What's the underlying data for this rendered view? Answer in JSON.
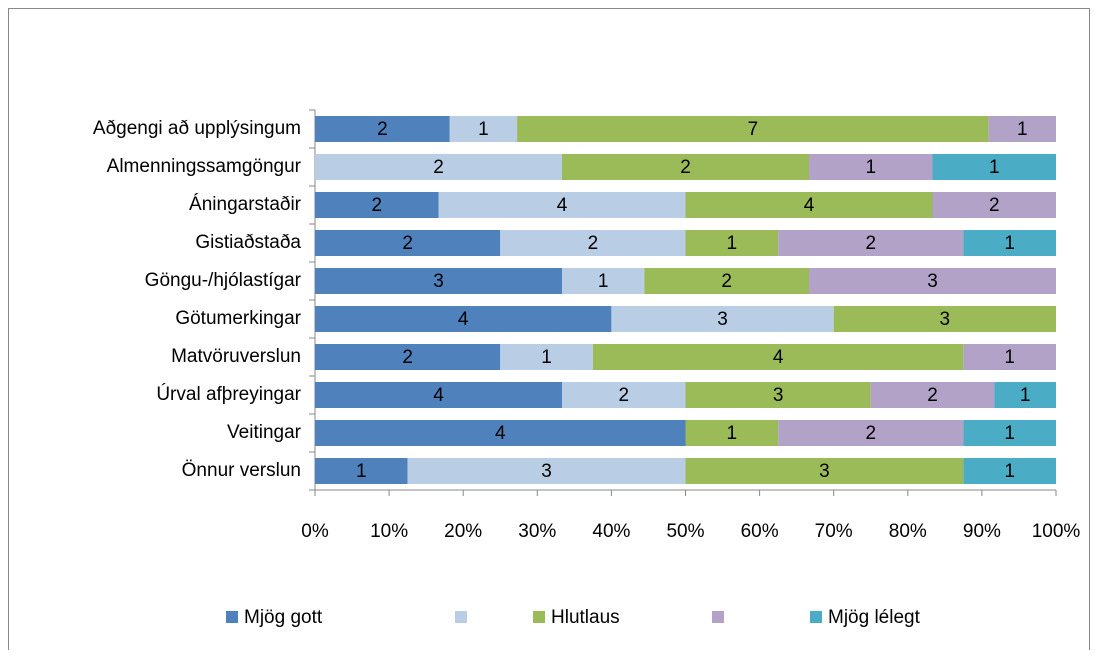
{
  "chart_data": {
    "type": "bar",
    "orientation": "horizontal",
    "stacking": "percent",
    "categories": [
      "Aðgengi að upplýsingum",
      "Almenningssamgöngur",
      "Áningarstaðir",
      "Gistiaðstaða",
      "Göngu-/hjólastígar",
      "Götumerkingar",
      "Matvöruverslun",
      "Úrval afþreyingar",
      "Veitingar",
      "Önnur verslun"
    ],
    "series": [
      {
        "name": "Mjög gott",
        "color": "#4f81bd",
        "values": [
          2,
          null,
          2,
          2,
          3,
          4,
          2,
          4,
          4,
          1
        ]
      },
      {
        "name": null,
        "color": "#b9cde5",
        "values": [
          1,
          2,
          4,
          2,
          1,
          3,
          1,
          2,
          null,
          3
        ]
      },
      {
        "name": "Hlutlaus",
        "color": "#9bbb59",
        "values": [
          7,
          2,
          4,
          1,
          2,
          3,
          4,
          3,
          1,
          3
        ]
      },
      {
        "name": null,
        "color": "#b3a2c7",
        "values": [
          1,
          1,
          2,
          2,
          3,
          null,
          1,
          2,
          2,
          null
        ]
      },
      {
        "name": "Mjög lélegt",
        "color": "#4bacc6",
        "values": [
          null,
          1,
          null,
          1,
          null,
          null,
          null,
          1,
          1,
          1
        ]
      }
    ],
    "xlim": [
      0,
      100
    ],
    "xticks": [
      {
        "value": 0,
        "label": "0%"
      },
      {
        "value": 10,
        "label": "10%"
      },
      {
        "value": 20,
        "label": "20%"
      },
      {
        "value": 30,
        "label": "30%"
      },
      {
        "value": 40,
        "label": "40%"
      },
      {
        "value": 50,
        "label": "50%"
      },
      {
        "value": 60,
        "label": "60%"
      },
      {
        "value": 70,
        "label": "70%"
      },
      {
        "value": 80,
        "label": "80%"
      },
      {
        "value": 90,
        "label": "90%"
      },
      {
        "value": 100,
        "label": "100%"
      }
    ],
    "legend": "bottom",
    "data_labels": true
  }
}
